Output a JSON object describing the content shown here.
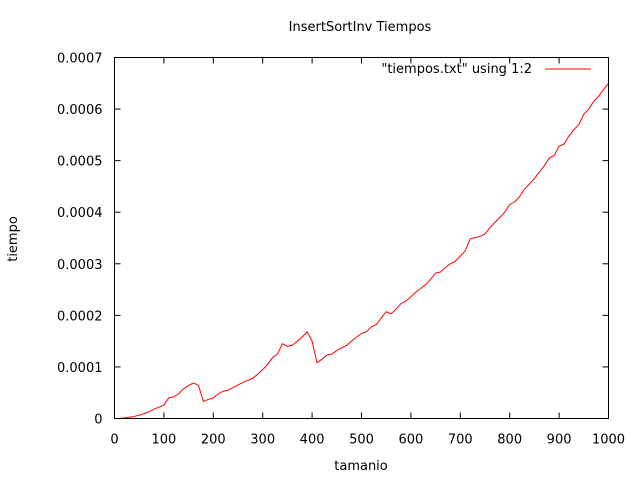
{
  "chart_data": {
    "type": "line",
    "title": "InsertSortInv Tiempos",
    "xlabel": "tamanio",
    "ylabel": "tiempo",
    "xlim": [
      0,
      1000
    ],
    "ylim": [
      0,
      0.0007
    ],
    "x_ticks": [
      "0",
      "100",
      "200",
      "300",
      "400",
      "500",
      "600",
      "700",
      "800",
      "900",
      "1000"
    ],
    "y_ticks": [
      "0",
      "0.0001",
      "0.0002",
      "0.0003",
      "0.0004",
      "0.0005",
      "0.0006",
      "0.0007"
    ],
    "grid": false,
    "legend_position": "top-right",
    "series": [
      {
        "name": "\"tiempos.txt\" using 1:2",
        "color": "#ff0000",
        "x": [
          10,
          20,
          30,
          40,
          50,
          60,
          70,
          80,
          90,
          100,
          110,
          120,
          130,
          140,
          150,
          160,
          170,
          180,
          190,
          200,
          210,
          220,
          230,
          240,
          250,
          260,
          270,
          280,
          290,
          300,
          310,
          320,
          330,
          340,
          350,
          360,
          370,
          380,
          390,
          400,
          410,
          420,
          430,
          440,
          450,
          460,
          470,
          480,
          490,
          500,
          510,
          520,
          530,
          540,
          550,
          560,
          570,
          580,
          590,
          600,
          610,
          620,
          630,
          640,
          650,
          660,
          670,
          680,
          690,
          700,
          710,
          720,
          730,
          740,
          750,
          760,
          770,
          780,
          790,
          800,
          810,
          820,
          830,
          840,
          850,
          860,
          870,
          880,
          890,
          900,
          910,
          920,
          930,
          940,
          950,
          960,
          970,
          980,
          990,
          1000
        ],
        "y": [
          5e-07,
          1e-06,
          2.5e-06,
          4e-06,
          6.5e-06,
          9.5e-06,
          1.3e-05,
          1.8e-05,
          2.2e-05,
          2.6e-05,
          4e-05,
          4.2e-05,
          4.8e-05,
          5.8e-05,
          6.4e-05,
          6.9e-05,
          6.4e-05,
          3.3e-05,
          3.7e-05,
          4e-05,
          4.8e-05,
          5.3e-05,
          5.5e-05,
          6e-05,
          6.5e-05,
          7e-05,
          7.4e-05,
          7.8e-05,
          8.6e-05,
          9.5e-05,
          0.000105,
          0.000118,
          0.000125,
          0.000145,
          0.00014,
          0.000142,
          0.00015,
          0.000158,
          0.000168,
          0.00015,
          0.000108,
          0.000115,
          0.000123,
          0.000125,
          0.000132,
          0.000137,
          0.000142,
          0.00015,
          0.000158,
          0.000165,
          0.000168,
          0.000178,
          0.000182,
          0.000195,
          0.000207,
          0.000203,
          0.000212,
          0.000223,
          0.000228,
          0.000236,
          0.000245,
          0.000252,
          0.00026,
          0.00027,
          0.000282,
          0.000284,
          0.000293,
          0.0003,
          0.000305,
          0.000315,
          0.000325,
          0.000348,
          0.000351,
          0.000353,
          0.000358,
          0.00037,
          0.00038,
          0.00039,
          0.0004,
          0.000415,
          0.00042,
          0.00043,
          0.000445,
          0.000455,
          0.000465,
          0.000478,
          0.00049,
          0.000505,
          0.00051,
          0.000528,
          0.000532,
          0.000548,
          0.00056,
          0.00057,
          0.00059,
          0.0006,
          0.000615,
          0.000625,
          0.000638,
          0.00065
        ]
      }
    ]
  }
}
